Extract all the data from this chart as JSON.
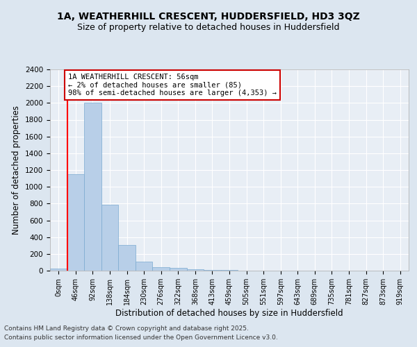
{
  "title1": "1A, WEATHERHILL CRESCENT, HUDDERSFIELD, HD3 3QZ",
  "title2": "Size of property relative to detached houses in Huddersfield",
  "xlabel": "Distribution of detached houses by size in Huddersfield",
  "ylabel": "Number of detached properties",
  "categories": [
    "0sqm",
    "46sqm",
    "92sqm",
    "138sqm",
    "184sqm",
    "230sqm",
    "276sqm",
    "322sqm",
    "368sqm",
    "413sqm",
    "459sqm",
    "505sqm",
    "551sqm",
    "597sqm",
    "643sqm",
    "689sqm",
    "735sqm",
    "781sqm",
    "827sqm",
    "873sqm",
    "919sqm"
  ],
  "values": [
    28,
    1150,
    2000,
    790,
    305,
    105,
    42,
    32,
    18,
    12,
    12,
    0,
    0,
    0,
    0,
    0,
    0,
    0,
    0,
    0,
    0
  ],
  "bar_color": "#b8cfe8",
  "bar_edge_color": "#7aaad0",
  "annotation_text": "1A WEATHERHILL CRESCENT: 56sqm\n← 2% of detached houses are smaller (85)\n98% of semi-detached houses are larger (4,353) →",
  "annotation_box_color": "#ffffff",
  "annotation_box_edge": "#cc0000",
  "red_line_x": 0.5,
  "ylim": [
    0,
    2400
  ],
  "yticks": [
    0,
    200,
    400,
    600,
    800,
    1000,
    1200,
    1400,
    1600,
    1800,
    2000,
    2200,
    2400
  ],
  "bg_color": "#dce6f0",
  "plot_bg": "#e8eef5",
  "grid_color": "#ffffff",
  "footer1": "Contains HM Land Registry data © Crown copyright and database right 2025.",
  "footer2": "Contains public sector information licensed under the Open Government Licence v3.0.",
  "title_fontsize": 10,
  "subtitle_fontsize": 9,
  "axis_label_fontsize": 8.5,
  "tick_fontsize": 7.5,
  "annotation_fontsize": 7.5,
  "footer_fontsize": 6.5
}
